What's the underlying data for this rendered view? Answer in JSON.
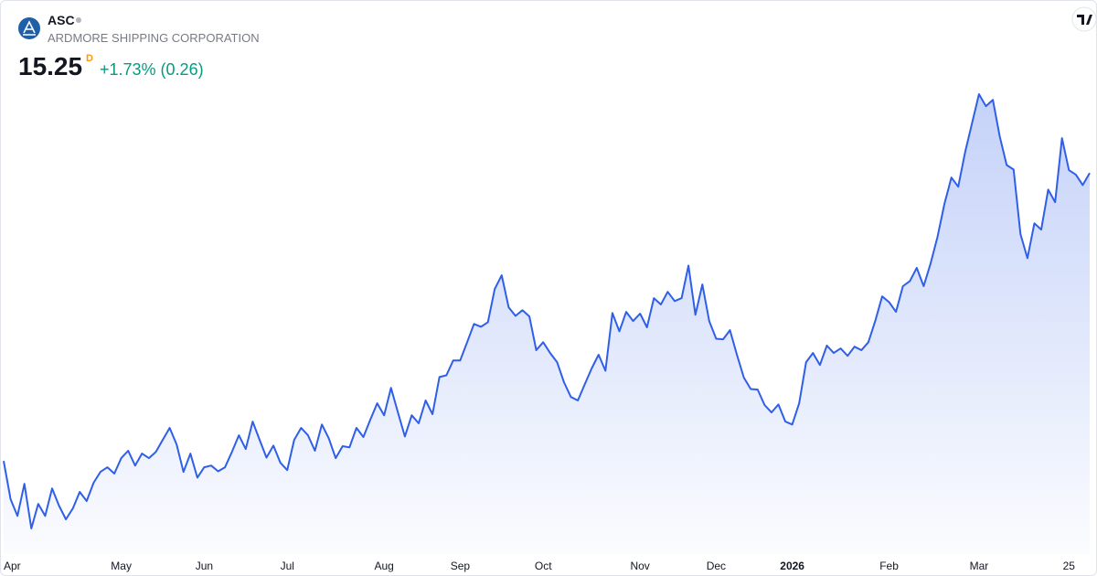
{
  "chart_data": {
    "type": "area",
    "title": "ASC",
    "subtitle": "ARDMORE SHIPPING CORPORATION",
    "quote": {
      "price": "15.25",
      "interval": "D",
      "change": "+1.73% (0.26)"
    },
    "color": "#2f5fe8",
    "values": [
      10.21,
      9.54,
      9.25,
      9.81,
      9.03,
      9.46,
      9.25,
      9.73,
      9.43,
      9.19,
      9.38,
      9.67,
      9.51,
      9.83,
      10.02,
      10.1,
      9.99,
      10.26,
      10.39,
      10.13,
      10.34,
      10.26,
      10.37,
      10.58,
      10.79,
      10.5,
      10.02,
      10.34,
      9.92,
      10.1,
      10.13,
      10.03,
      10.1,
      10.37,
      10.66,
      10.42,
      10.9,
      10.58,
      10.27,
      10.48,
      10.18,
      10.05,
      10.58,
      10.79,
      10.66,
      10.39,
      10.85,
      10.61,
      10.26,
      10.47,
      10.45,
      10.79,
      10.63,
      10.93,
      11.22,
      11.01,
      11.49,
      11.06,
      10.64,
      11.01,
      10.87,
      11.27,
      11.03,
      11.68,
      11.71,
      11.97,
      11.97,
      12.29,
      12.61,
      12.56,
      12.64,
      13.22,
      13.46,
      12.9,
      12.75,
      12.85,
      12.74,
      12.15,
      12.29,
      12.1,
      11.94,
      11.59,
      11.33,
      11.27,
      11.55,
      11.83,
      12.07,
      11.79,
      12.8,
      12.48,
      12.82,
      12.66,
      12.79,
      12.55,
      13.06,
      12.95,
      13.17,
      13.01,
      13.06,
      13.63,
      12.77,
      13.3,
      12.66,
      12.35,
      12.34,
      12.5,
      12.07,
      11.67,
      11.47,
      11.46,
      11.19,
      11.06,
      11.2,
      10.9,
      10.85,
      11.22,
      11.94,
      12.1,
      11.89,
      12.23,
      12.1,
      12.18,
      12.05,
      12.21,
      12.15,
      12.29,
      12.66,
      13.09,
      12.99,
      12.82,
      13.27,
      13.36,
      13.59,
      13.27,
      13.67,
      14.13,
      14.71,
      15.17,
      15.01,
      15.62,
      16.13,
      16.63,
      16.42,
      16.53,
      15.89,
      15.39,
      15.31,
      14.18,
      13.76,
      14.37,
      14.26,
      14.96,
      14.74,
      15.86,
      15.3,
      15.22,
      15.04,
      15.25
    ],
    "xlim": [
      0,
      157
    ],
    "xticks": [
      {
        "value": 0,
        "label": "Apr"
      },
      {
        "value": 17,
        "label": "May"
      },
      {
        "value": 29,
        "label": "Jun"
      },
      {
        "value": 41,
        "label": "Jul"
      },
      {
        "value": 55,
        "label": "Aug"
      },
      {
        "value": 66,
        "label": "Sep"
      },
      {
        "value": 78,
        "label": "Oct"
      },
      {
        "value": 92,
        "label": "Nov"
      },
      {
        "value": 103,
        "label": "Dec"
      },
      {
        "value": 114,
        "label": "2026"
      },
      {
        "value": 128,
        "label": "Feb"
      },
      {
        "value": 141,
        "label": "Mar"
      },
      {
        "value": 154,
        "label": "25"
      }
    ]
  }
}
